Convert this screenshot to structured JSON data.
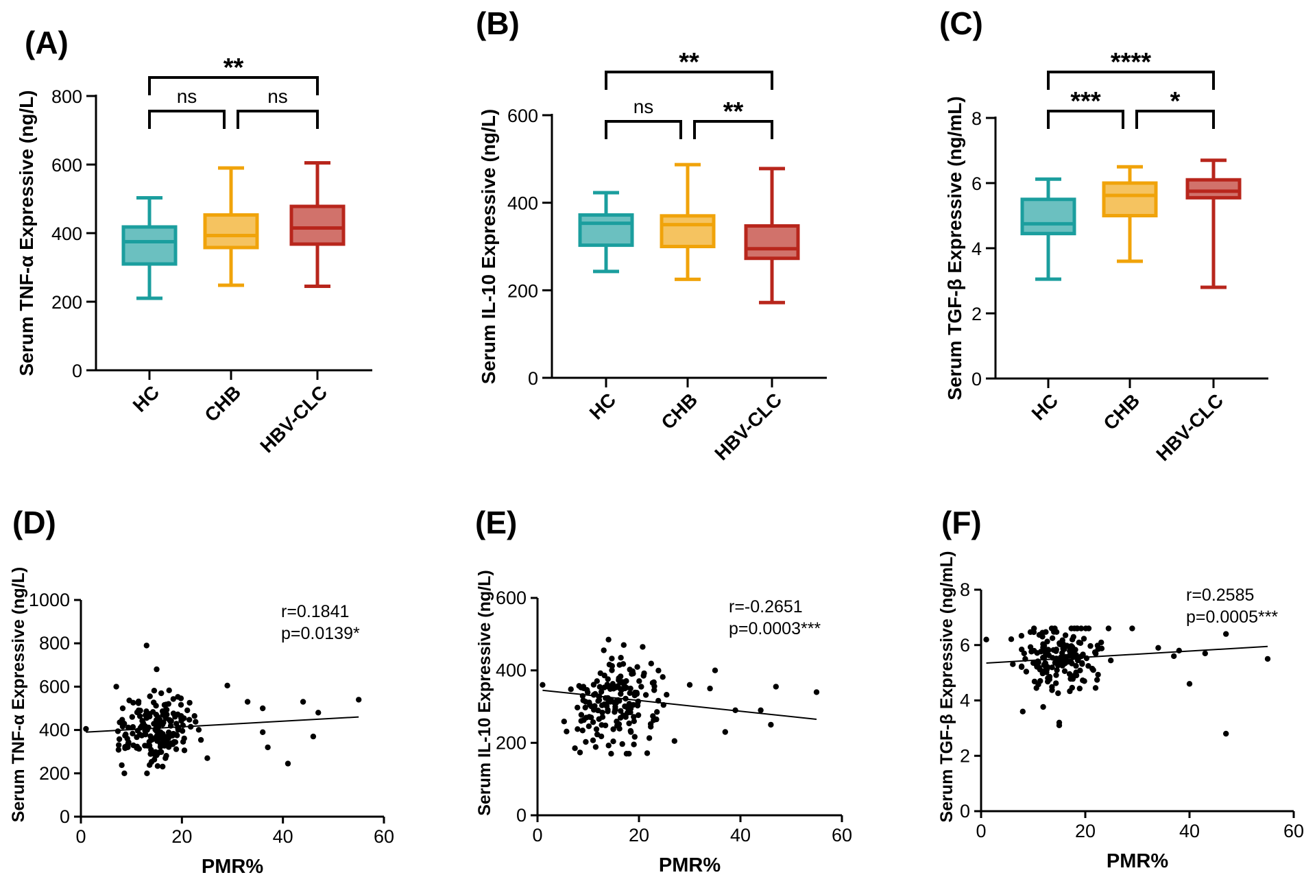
{
  "chart_data": [
    {
      "panel": "(A)",
      "type": "box",
      "ylabel": "Serum TNF-α Expressive (ng/L)",
      "ylim": [
        0,
        800
      ],
      "yticks": [
        0,
        200,
        400,
        600,
        800
      ],
      "categories": [
        "HC",
        "CHB",
        "HBV-CLC"
      ],
      "colors": [
        "#1b9e9e",
        "#f0a30a",
        "#b8261c"
      ],
      "boxes": [
        {
          "min": 210,
          "q1": 310,
          "median": 375,
          "q3": 418,
          "max": 503
        },
        {
          "min": 248,
          "q1": 358,
          "median": 393,
          "q3": 453,
          "max": 590
        },
        {
          "min": 245,
          "q1": 368,
          "median": 415,
          "q3": 478,
          "max": 605
        }
      ],
      "significance": [
        {
          "from": 0,
          "to": 1,
          "label": "ns",
          "level": 1
        },
        {
          "from": 1,
          "to": 2,
          "label": "ns",
          "level": 1
        },
        {
          "from": 0,
          "to": 2,
          "label": "**",
          "level": 2
        }
      ]
    },
    {
      "panel": "(B)",
      "type": "box",
      "ylabel": "Serum IL-10 Expressive (ng/L)",
      "ylim": [
        0,
        600
      ],
      "yticks": [
        0,
        200,
        400,
        600
      ],
      "categories": [
        "HC",
        "CHB",
        "HBV-CLC"
      ],
      "colors": [
        "#1b9e9e",
        "#f0a30a",
        "#b8261c"
      ],
      "boxes": [
        {
          "min": 243,
          "q1": 303,
          "median": 353,
          "q3": 372,
          "max": 423
        },
        {
          "min": 225,
          "q1": 300,
          "median": 350,
          "q3": 370,
          "max": 487
        },
        {
          "min": 172,
          "q1": 273,
          "median": 295,
          "q3": 347,
          "max": 478
        }
      ],
      "significance": [
        {
          "from": 0,
          "to": 1,
          "label": "ns",
          "level": 1
        },
        {
          "from": 1,
          "to": 2,
          "label": "**",
          "level": 1
        },
        {
          "from": 0,
          "to": 2,
          "label": "**",
          "level": 2
        }
      ]
    },
    {
      "panel": "(C)",
      "type": "box",
      "ylabel": "Serum TGF-β Expressive (ng/mL)",
      "ylim": [
        0,
        8
      ],
      "yticks": [
        0,
        2,
        4,
        6,
        8
      ],
      "categories": [
        "HC",
        "CHB",
        "HBV-CLC"
      ],
      "colors": [
        "#1b9e9e",
        "#f0a30a",
        "#b8261c"
      ],
      "boxes": [
        {
          "min": 3.05,
          "q1": 4.45,
          "median": 4.75,
          "q3": 5.5,
          "max": 6.12
        },
        {
          "min": 3.6,
          "q1": 5.0,
          "median": 5.62,
          "q3": 6.0,
          "max": 6.5
        },
        {
          "min": 2.8,
          "q1": 5.55,
          "median": 5.75,
          "q3": 6.1,
          "max": 6.7
        }
      ],
      "significance": [
        {
          "from": 0,
          "to": 1,
          "label": "***",
          "level": 1
        },
        {
          "from": 1,
          "to": 2,
          "label": "*",
          "level": 1
        },
        {
          "from": 0,
          "to": 2,
          "label": "****",
          "level": 2
        }
      ]
    },
    {
      "panel": "(D)",
      "type": "scatter",
      "xlabel": "PMR%",
      "ylabel": "Serum TNF-α Expressive (ng/L)",
      "xlim": [
        0,
        60
      ],
      "ylim": [
        0,
        1000
      ],
      "xticks": [
        0,
        20,
        40,
        60
      ],
      "yticks": [
        0,
        200,
        400,
        600,
        800,
        1000
      ],
      "r_text": "r=0.1841",
      "p_text": "p=0.0139*",
      "fit": {
        "x": [
          1,
          55
        ],
        "y": [
          390,
          460
        ]
      },
      "seed": 11,
      "points": {
        "n": 180,
        "mean_y": 400,
        "sd_y": 85,
        "min_y": 200,
        "max_y": 650
      },
      "outliers": [
        [
          1,
          405
        ],
        [
          13,
          790
        ],
        [
          15,
          680
        ],
        [
          7,
          600
        ],
        [
          29,
          605
        ],
        [
          33,
          530
        ],
        [
          36,
          500
        ],
        [
          41,
          245
        ],
        [
          44,
          530
        ],
        [
          47,
          480
        ],
        [
          55,
          540
        ],
        [
          37,
          320
        ],
        [
          36,
          390
        ],
        [
          46,
          370
        ]
      ]
    },
    {
      "panel": "(E)",
      "type": "scatter",
      "xlabel": "PMR%",
      "ylabel": "Serum IL-10 Expressive (ng/L)",
      "xlim": [
        0,
        60
      ],
      "ylim": [
        0,
        600
      ],
      "xticks": [
        0,
        20,
        40,
        60
      ],
      "yticks": [
        0,
        200,
        400,
        600
      ],
      "r_text": "r=-0.2651",
      "p_text": "p=0.0003***",
      "fit": {
        "x": [
          1,
          55
        ],
        "y": [
          345,
          265
        ]
      },
      "seed": 23,
      "points": {
        "n": 180,
        "mean_y": 320,
        "sd_y": 60,
        "min_y": 170,
        "max_y": 470
      },
      "outliers": [
        [
          1,
          360
        ],
        [
          14,
          485
        ],
        [
          17,
          470
        ],
        [
          27,
          205
        ],
        [
          30,
          360
        ],
        [
          34,
          350
        ],
        [
          35,
          400
        ],
        [
          37,
          230
        ],
        [
          39,
          290
        ],
        [
          44,
          290
        ],
        [
          47,
          355
        ],
        [
          55,
          340
        ],
        [
          46,
          250
        ]
      ]
    },
    {
      "panel": "(F)",
      "type": "scatter",
      "xlabel": "PMR%",
      "ylabel": "Serum TGF-β Expressive (ng/mL)",
      "xlim": [
        0,
        60
      ],
      "ylim": [
        0,
        8
      ],
      "xticks": [
        0,
        20,
        40,
        60
      ],
      "yticks": [
        0,
        2,
        4,
        6,
        8
      ],
      "r_text": "r=0.2585",
      "p_text": "p=0.0005***",
      "fit": {
        "x": [
          1,
          55
        ],
        "y": [
          5.35,
          5.95
        ]
      },
      "seed": 37,
      "points": {
        "n": 180,
        "mean_y": 5.5,
        "sd_y": 0.65,
        "min_y": 3.1,
        "max_y": 6.6
      },
      "outliers": [
        [
          1,
          6.2
        ],
        [
          8,
          3.6
        ],
        [
          15,
          3.1
        ],
        [
          15,
          3.2
        ],
        [
          29,
          6.6
        ],
        [
          34,
          5.9
        ],
        [
          37,
          5.6
        ],
        [
          40,
          4.6
        ],
        [
          47,
          6.4
        ],
        [
          47,
          2.8
        ],
        [
          55,
          5.5
        ],
        [
          38,
          5.8
        ],
        [
          43,
          5.7
        ]
      ]
    }
  ]
}
